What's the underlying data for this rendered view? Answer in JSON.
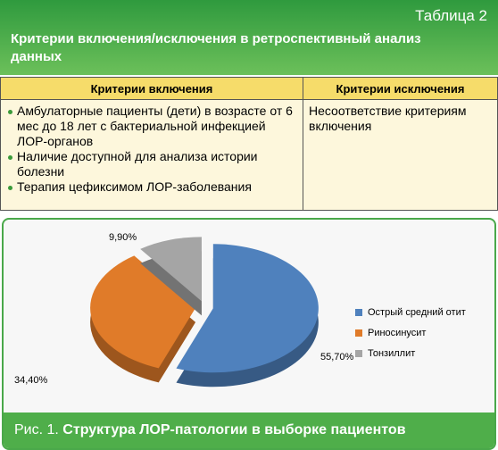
{
  "table": {
    "label": "Таблица 2",
    "title": "Критерии включения/исключения в ретроспективный анализ данных",
    "columns": [
      "Критерии включения",
      "Критерии исключения"
    ],
    "inclusion": [
      "Амбулаторные пациенты (дети) в возрасте от 6 мес до 18 лет с бактериальной инфекцией ЛОР-органов",
      "Наличие доступной для анализа истории болезни",
      "Терапия цефиксимом ЛОР-заболевания"
    ],
    "exclusion": "Несоответствие критериям включения"
  },
  "chart_data": {
    "type": "pie",
    "categories": [
      "Острый средний отит",
      "Риносинусит",
      "Тонзиллит"
    ],
    "values": [
      55.7,
      34.4,
      9.9
    ],
    "value_labels": [
      "55,70%",
      "34,40%",
      "9,90%"
    ],
    "colors": [
      "#4f81bd",
      "#e07b29",
      "#a5a5a5"
    ]
  },
  "figure": {
    "label": "Рис. 1.",
    "title": "Структура ЛОР-патологии в выборке пациентов"
  }
}
